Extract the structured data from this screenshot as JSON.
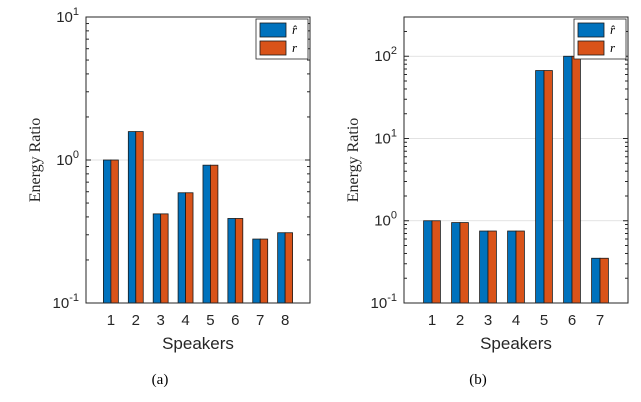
{
  "chart_data": [
    {
      "type": "bar",
      "panel_label": "(a)",
      "xlabel": "Speakers",
      "ylabel": "Energy Ratio",
      "y_scale": "log",
      "ylim": [
        0.1,
        10
      ],
      "y_ticks": [
        {
          "value": 0.1,
          "base": "10",
          "exp": "-1"
        },
        {
          "value": 1,
          "base": "10",
          "exp": "0"
        },
        {
          "value": 10,
          "base": "10",
          "exp": "1"
        }
      ],
      "categories": [
        "1",
        "2",
        "3",
        "4",
        "5",
        "6",
        "7",
        "8"
      ],
      "series": [
        {
          "name": "r̂",
          "color": "#0072bd",
          "values": [
            1.0,
            1.58,
            0.42,
            0.59,
            0.92,
            0.39,
            0.28,
            0.31
          ]
        },
        {
          "name": "r",
          "color": "#d95319",
          "values": [
            1.0,
            1.58,
            0.42,
            0.59,
            0.92,
            0.39,
            0.28,
            0.31
          ]
        }
      ],
      "legend": "top-right",
      "grid": "y-major"
    },
    {
      "type": "bar",
      "panel_label": "(b)",
      "xlabel": "Speakers",
      "ylabel": "Energy Ratio",
      "y_scale": "log",
      "ylim": [
        0.1,
        300
      ],
      "y_ticks": [
        {
          "value": 0.1,
          "base": "10",
          "exp": "-1"
        },
        {
          "value": 1,
          "base": "10",
          "exp": "0"
        },
        {
          "value": 10,
          "base": "10",
          "exp": "1"
        },
        {
          "value": 100,
          "base": "10",
          "exp": "2"
        }
      ],
      "categories": [
        "1",
        "2",
        "3",
        "4",
        "5",
        "6",
        "7"
      ],
      "series": [
        {
          "name": "r̂",
          "color": "#0072bd",
          "values": [
            1.0,
            0.95,
            0.75,
            0.75,
            67,
            100,
            0.35
          ]
        },
        {
          "name": "r",
          "color": "#d95319",
          "values": [
            1.0,
            0.95,
            0.75,
            0.75,
            67,
            100,
            0.35
          ]
        }
      ],
      "legend": "top-right",
      "grid": "y-major"
    }
  ]
}
